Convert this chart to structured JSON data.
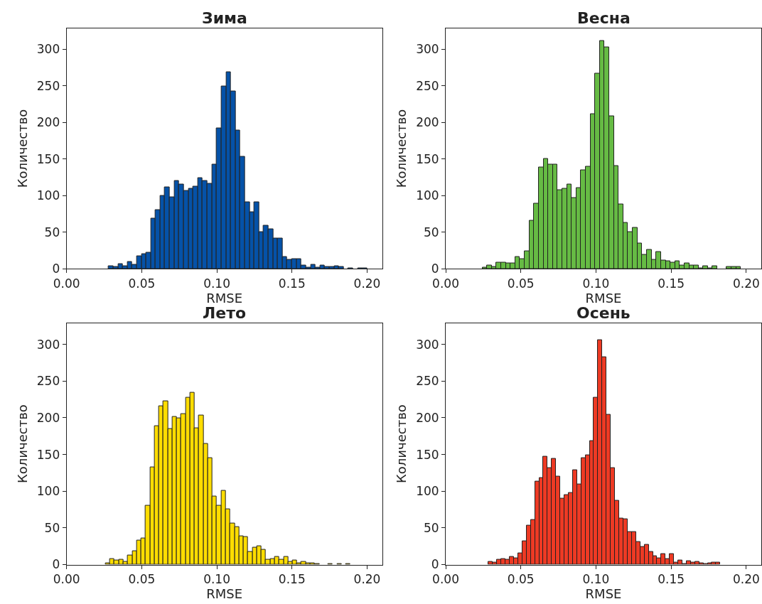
{
  "chart_data": [
    {
      "type": "histogram",
      "title": "Зима",
      "xlabel": "RMSE",
      "ylabel": "Количество",
      "color": "#0552a8",
      "grid": false,
      "xlim": [
        0,
        0.21
      ],
      "ylim": [
        0,
        329
      ],
      "xticks": [
        {
          "value": 0,
          "label": "0.00"
        },
        {
          "value": 0.05,
          "label": "0.05"
        },
        {
          "value": 0.1,
          "label": "0.10"
        },
        {
          "value": 0.15,
          "label": "0.15"
        },
        {
          "value": 0.2,
          "label": "0.20"
        }
      ],
      "yticks": [
        0,
        50,
        100,
        150,
        200,
        250,
        300
      ],
      "bins": [
        0.028,
        0.0311,
        0.0343,
        0.0374,
        0.0405,
        0.0436,
        0.0468,
        0.0499,
        0.053,
        0.0561,
        0.0593,
        0.0624,
        0.0655,
        0.0687,
        0.0718,
        0.0749,
        0.078,
        0.0812,
        0.0843,
        0.0874,
        0.0905,
        0.0937,
        0.0968,
        0.0999,
        0.1031,
        0.1062,
        0.1093,
        0.1124,
        0.1156,
        0.1187,
        0.1218,
        0.1249,
        0.1281,
        0.1312,
        0.1343,
        0.1375,
        0.1406,
        0.1437,
        0.1468,
        0.15,
        0.1531,
        0.1562,
        0.1593,
        0.1625,
        0.1656,
        0.1687,
        0.1718,
        0.175,
        0.1781,
        0.1812,
        0.1844,
        0.1875,
        0.1906,
        0.1937,
        0.1969,
        0.2
      ],
      "values": [
        4,
        3,
        7,
        4,
        10,
        6,
        17,
        20,
        22,
        69,
        81,
        100,
        112,
        98,
        120,
        115,
        107,
        110,
        113,
        124,
        120,
        116,
        143,
        192,
        249,
        269,
        243,
        189,
        153,
        91,
        78,
        91,
        50,
        59,
        54,
        42,
        42,
        16,
        13,
        14,
        14,
        5,
        2,
        6,
        2,
        5,
        3,
        3,
        4,
        3,
        0,
        1,
        0,
        1,
        1
      ]
    },
    {
      "type": "histogram",
      "title": "Весна",
      "xlabel": "RMSE",
      "ylabel": "Количество",
      "color": "#66bb44",
      "grid": false,
      "xlim": [
        0,
        0.21
      ],
      "ylim": [
        0,
        329
      ],
      "xticks": [
        {
          "value": 0,
          "label": "0.00"
        },
        {
          "value": 0.05,
          "label": "0.05"
        },
        {
          "value": 0.1,
          "label": "0.10"
        },
        {
          "value": 0.15,
          "label": "0.15"
        },
        {
          "value": 0.2,
          "label": "0.20"
        }
      ],
      "yticks": [
        0,
        50,
        100,
        150,
        200,
        250,
        300
      ],
      "bins": [
        0.0244,
        0.0275,
        0.0307,
        0.0338,
        0.0369,
        0.04,
        0.0432,
        0.0463,
        0.0494,
        0.0525,
        0.0557,
        0.0588,
        0.0619,
        0.0651,
        0.0682,
        0.0713,
        0.0744,
        0.0776,
        0.0807,
        0.0838,
        0.0869,
        0.0901,
        0.0932,
        0.0963,
        0.0995,
        0.1026,
        0.1057,
        0.1088,
        0.112,
        0.1151,
        0.1182,
        0.1213,
        0.1245,
        0.1276,
        0.1307,
        0.1339,
        0.137,
        0.1401,
        0.1432,
        0.1464,
        0.1495,
        0.1526,
        0.1557,
        0.1589,
        0.162,
        0.1651,
        0.1682,
        0.1714,
        0.1745,
        0.1776,
        0.1808,
        0.1839,
        0.187,
        0.1901,
        0.1933,
        0.1964
      ],
      "values": [
        2,
        5,
        3,
        9,
        9,
        8,
        8,
        16,
        14,
        24,
        66,
        89,
        139,
        150,
        143,
        143,
        108,
        110,
        115,
        97,
        111,
        135,
        140,
        212,
        267,
        312,
        303,
        209,
        141,
        88,
        63,
        50,
        56,
        35,
        19,
        26,
        13,
        23,
        12,
        11,
        9,
        11,
        5,
        8,
        5,
        5,
        1,
        4,
        1,
        4,
        0,
        0,
        3,
        3,
        3
      ]
    },
    {
      "type": "histogram",
      "title": "Лето",
      "xlabel": "RMSE",
      "ylabel": "Количество",
      "color": "#ffdd00",
      "grid": false,
      "xlim": [
        0,
        0.21
      ],
      "ylim": [
        0,
        329
      ],
      "xticks": [
        {
          "value": 0,
          "label": "0.00"
        },
        {
          "value": 0.05,
          "label": "0.05"
        },
        {
          "value": 0.1,
          "label": "0.10"
        },
        {
          "value": 0.15,
          "label": "0.15"
        },
        {
          "value": 0.2,
          "label": "0.20"
        }
      ],
      "yticks": [
        0,
        50,
        100,
        150,
        200,
        250,
        300
      ],
      "bins": [
        0.026,
        0.029,
        0.0319,
        0.0349,
        0.0378,
        0.0408,
        0.0438,
        0.0467,
        0.0497,
        0.0527,
        0.0556,
        0.0586,
        0.0615,
        0.0645,
        0.0675,
        0.0704,
        0.0734,
        0.0763,
        0.0793,
        0.0823,
        0.0852,
        0.0882,
        0.0912,
        0.0941,
        0.0971,
        0.1,
        0.103,
        0.106,
        0.1089,
        0.1119,
        0.1149,
        0.1178,
        0.1208,
        0.1237,
        0.1267,
        0.1297,
        0.1326,
        0.1356,
        0.1386,
        0.1415,
        0.1445,
        0.1474,
        0.1504,
        0.1534,
        0.1563,
        0.1593,
        0.1622,
        0.1652,
        0.1682,
        0.1711,
        0.1741,
        0.1771,
        0.18,
        0.183,
        0.1859,
        0.1889
      ],
      "values": [
        2,
        8,
        6,
        7,
        4,
        13,
        18,
        33,
        36,
        80,
        133,
        189,
        216,
        223,
        185,
        201,
        199,
        205,
        227,
        234,
        186,
        203,
        164,
        145,
        93,
        80,
        101,
        75,
        56,
        51,
        39,
        38,
        17,
        23,
        25,
        20,
        7,
        8,
        11,
        7,
        11,
        4,
        6,
        2,
        4,
        2,
        2,
        1,
        0,
        0,
        1,
        0,
        1,
        0,
        1
      ]
    },
    {
      "type": "histogram",
      "title": "Осень",
      "xlabel": "RMSE",
      "ylabel": "Количество",
      "color": "#ee3a24",
      "grid": false,
      "xlim": [
        0,
        0.21
      ],
      "ylim": [
        0,
        329
      ],
      "xticks": [
        {
          "value": 0,
          "label": "0.00"
        },
        {
          "value": 0.05,
          "label": "0.05"
        },
        {
          "value": 0.1,
          "label": "0.10"
        },
        {
          "value": 0.15,
          "label": "0.15"
        },
        {
          "value": 0.2,
          "label": "0.20"
        }
      ],
      "yticks": [
        0,
        50,
        100,
        150,
        200,
        250,
        300
      ],
      "bins": [
        0.0286,
        0.0314,
        0.0342,
        0.037,
        0.0398,
        0.0426,
        0.0454,
        0.0482,
        0.051,
        0.0538,
        0.0566,
        0.0594,
        0.0622,
        0.065,
        0.0678,
        0.0706,
        0.0734,
        0.0762,
        0.079,
        0.0818,
        0.0846,
        0.0874,
        0.0902,
        0.093,
        0.0958,
        0.0986,
        0.1014,
        0.1042,
        0.107,
        0.1098,
        0.1127,
        0.1155,
        0.1183,
        0.1211,
        0.1239,
        0.1267,
        0.1295,
        0.1323,
        0.1351,
        0.1379,
        0.1407,
        0.1435,
        0.1463,
        0.1491,
        0.1519,
        0.1547,
        0.1575,
        0.1603,
        0.1631,
        0.1659,
        0.1687,
        0.1715,
        0.1743,
        0.1771,
        0.1799,
        0.1827
      ],
      "values": [
        4,
        3,
        7,
        8,
        7,
        11,
        9,
        15,
        32,
        53,
        61,
        113,
        118,
        147,
        132,
        144,
        120,
        90,
        95,
        98,
        129,
        109,
        145,
        149,
        168,
        227,
        306,
        283,
        204,
        132,
        87,
        63,
        62,
        44,
        44,
        31,
        24,
        27,
        17,
        12,
        9,
        14,
        8,
        14,
        3,
        6,
        1,
        5,
        3,
        4,
        2,
        1,
        2,
        3,
        3
      ]
    }
  ]
}
